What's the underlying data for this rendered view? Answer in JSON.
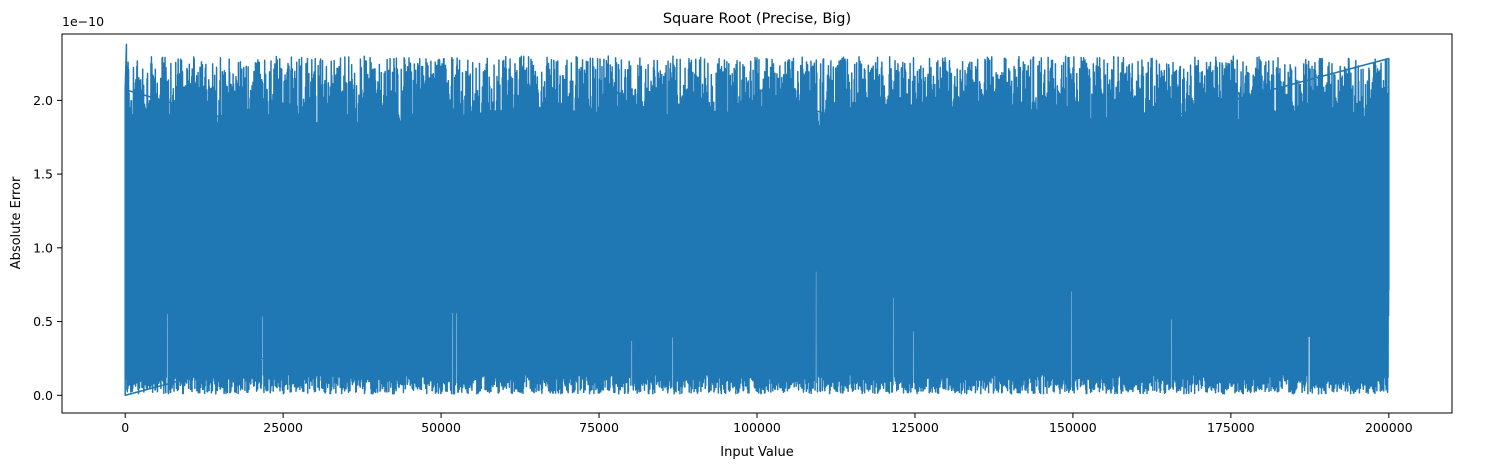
{
  "chart_data": {
    "type": "line",
    "title": "Square Root (Precise, Big)",
    "xlabel": "Input Value",
    "ylabel": "Absolute Error",
    "y_offset_label": "1e−10",
    "y_scale_factor": 1e-10,
    "xlim": [
      -10000,
      210000
    ],
    "ylim": [
      -1.2e-11,
      2.45e-10
    ],
    "x_ticks": [
      0,
      25000,
      50000,
      75000,
      100000,
      125000,
      150000,
      175000,
      200000
    ],
    "x_tick_labels": [
      "0",
      "25000",
      "50000",
      "75000",
      "100000",
      "125000",
      "150000",
      "175000",
      "200000"
    ],
    "y_ticks": [
      0.0,
      5e-11,
      1e-10,
      1.5e-10,
      2e-10
    ],
    "y_tick_labels": [
      "0.0",
      "0.5",
      "1.0",
      "1.5",
      "2.0"
    ],
    "grid": false,
    "series": [
      {
        "color": "#1f77b4",
        "x_range": [
          0,
          200000
        ],
        "y_min_observed": 0.0,
        "y_max_observed": 2.38e-10,
        "typical_upper_envelope": 2.3e-10,
        "typical_lower_envelope": 5e-12,
        "notes_points": [
          {
            "x": 0,
            "y": 0.0
          },
          {
            "x": 200,
            "y": 2.38e-10
          },
          {
            "x": 77600,
            "y": 1.12e-10
          },
          {
            "x": 100500,
            "y": 7.5e-11
          },
          {
            "x": 175800,
            "y": 8.8e-11
          },
          {
            "x": 200000,
            "y": 7.2e-11
          }
        ]
      }
    ]
  }
}
